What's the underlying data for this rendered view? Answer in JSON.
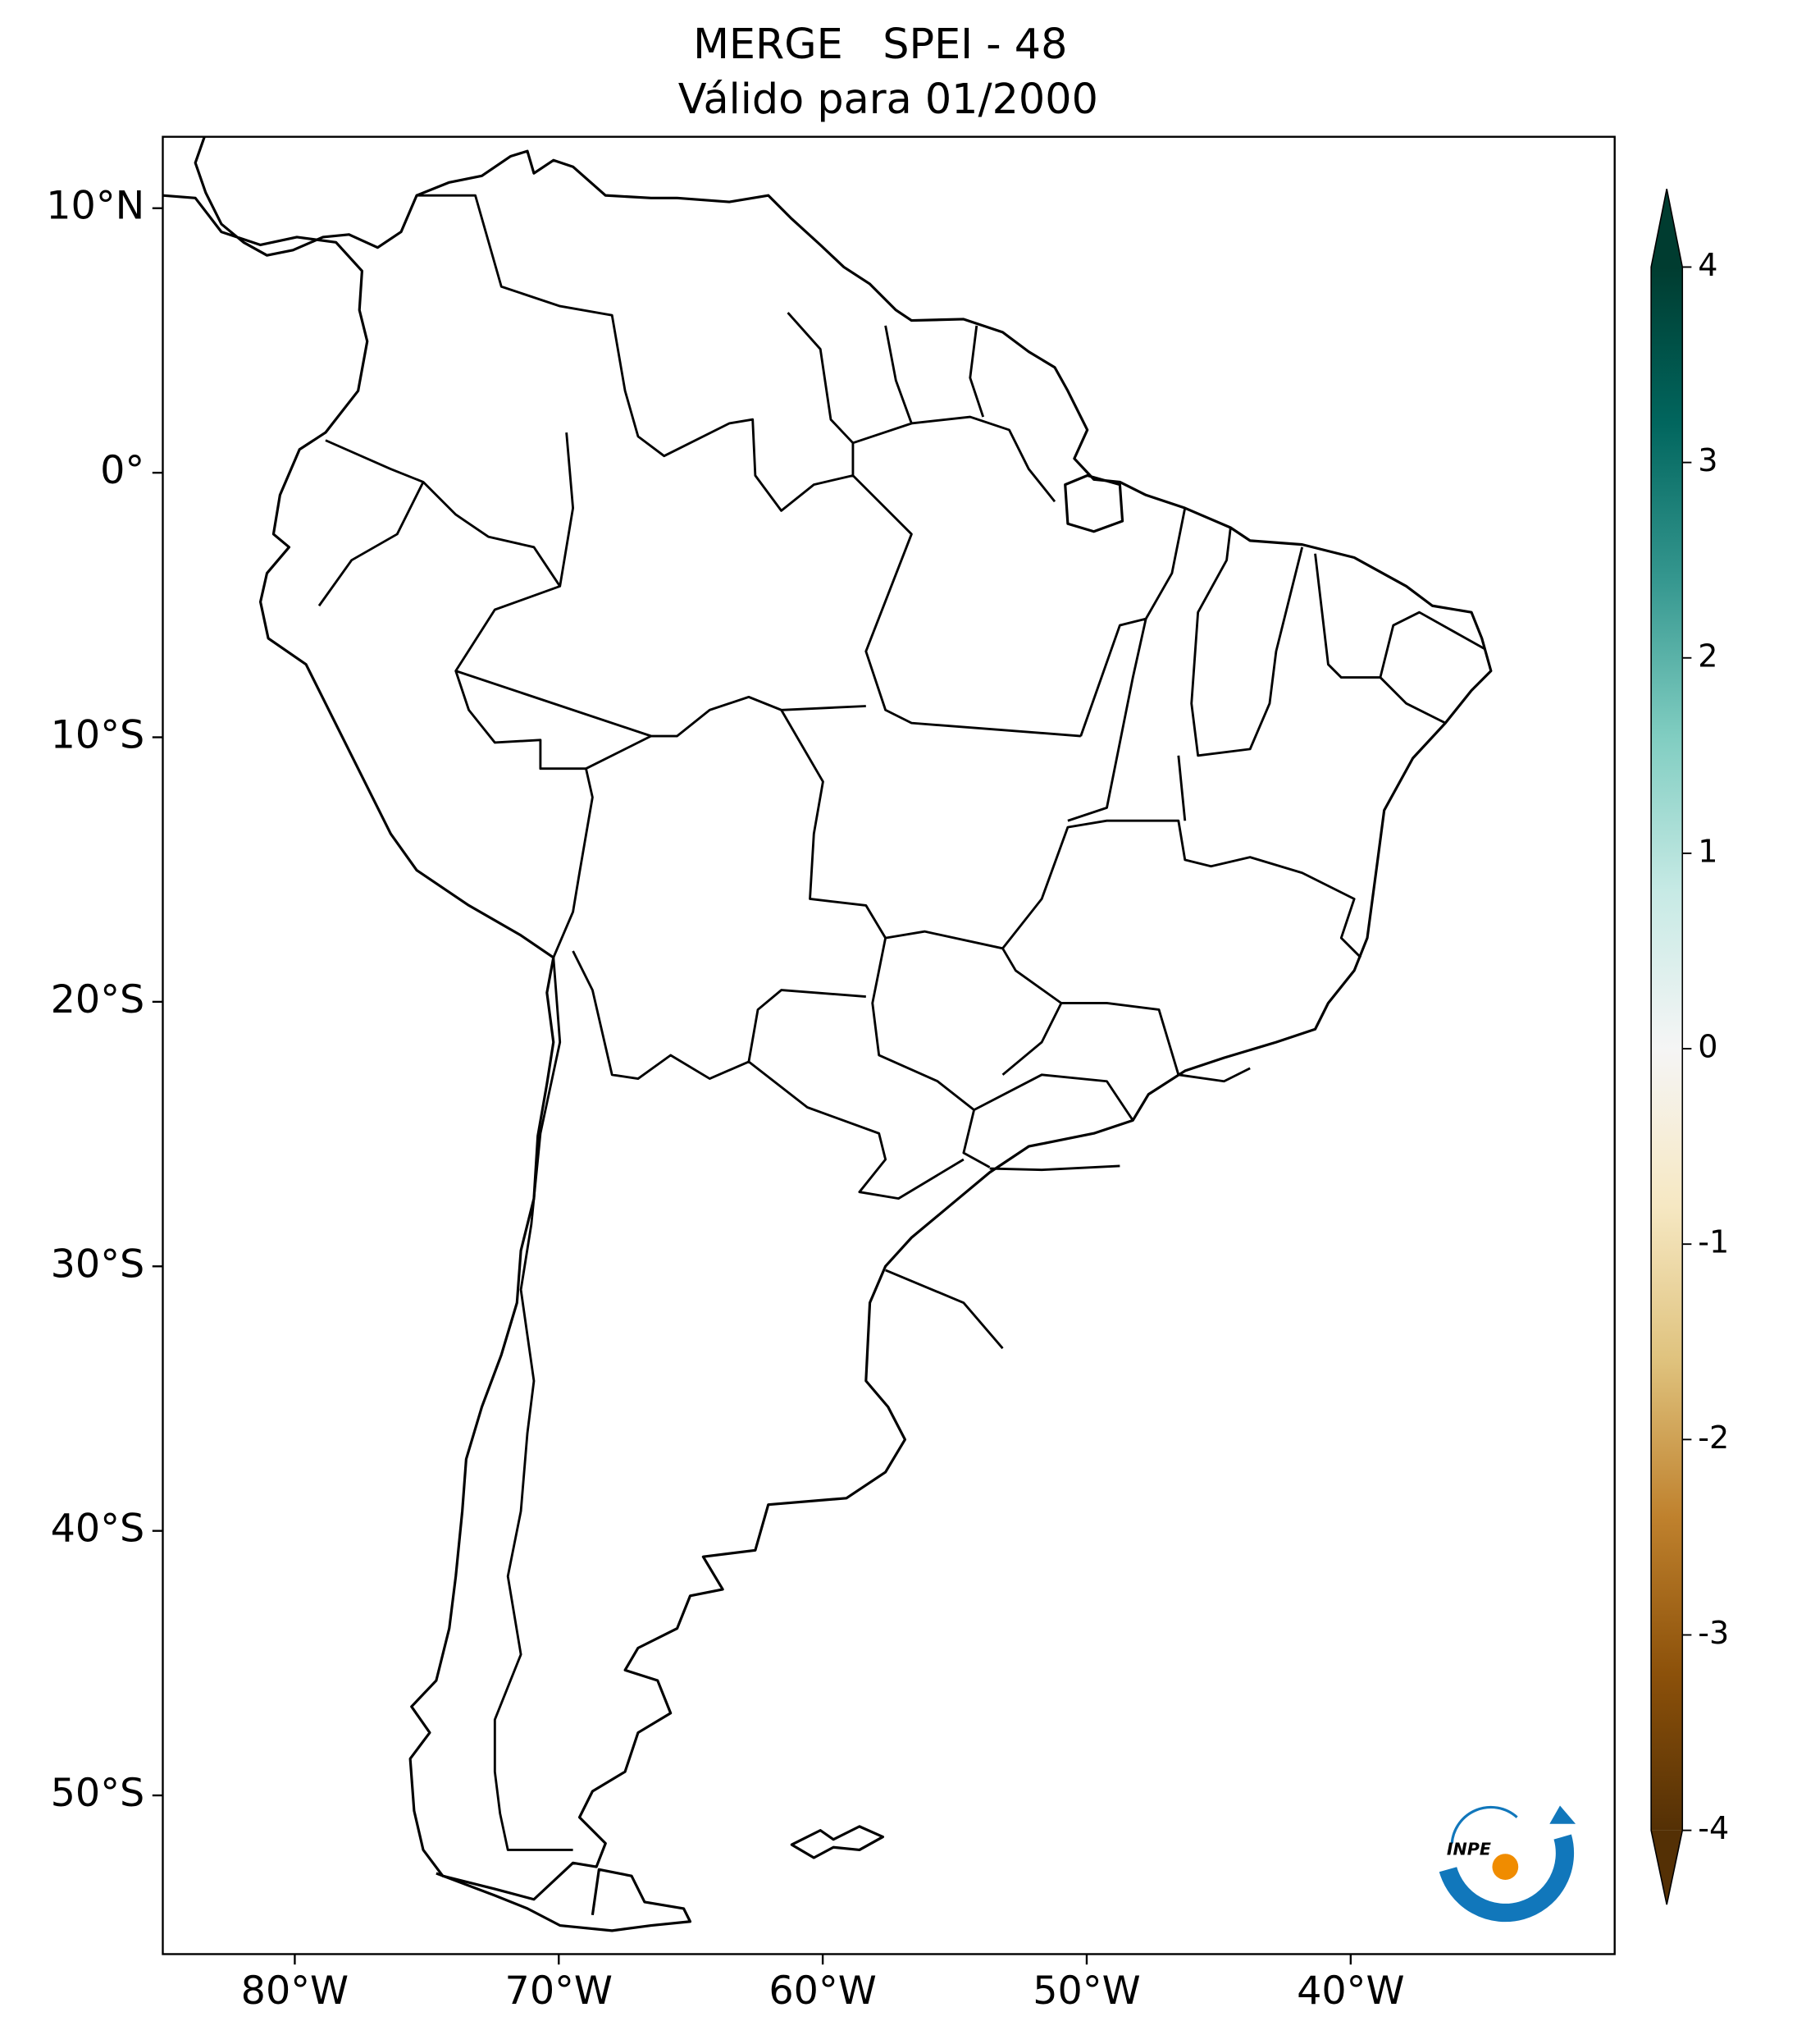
{
  "title": [
    "MERGE   SPEI - 48",
    "Válido para 01/2000"
  ],
  "map": {
    "xlim": [
      -85,
      -30
    ],
    "ylim": [
      -56,
      12.7
    ],
    "xticks": [
      {
        "value": -80,
        "label": "80°W"
      },
      {
        "value": -70,
        "label": "70°W"
      },
      {
        "value": -60,
        "label": "60°W"
      },
      {
        "value": -50,
        "label": "50°W"
      },
      {
        "value": -40,
        "label": "40°W"
      }
    ],
    "yticks": [
      {
        "value": 10,
        "label": "10°N"
      },
      {
        "value": 0,
        "label": "0°"
      },
      {
        "value": -10,
        "label": "10°S"
      },
      {
        "value": -20,
        "label": "20°S"
      },
      {
        "value": -30,
        "label": "30°S"
      },
      {
        "value": -40,
        "label": "40°S"
      },
      {
        "value": -50,
        "label": "50°S"
      }
    ]
  },
  "colorbar": {
    "lim": [
      -4,
      4
    ],
    "ticks": [
      -4,
      -3,
      -2,
      -1,
      0,
      1,
      2,
      3,
      4
    ],
    "colors": [
      "#543005",
      "#8c510a",
      "#bf812d",
      "#dfc27d",
      "#f6e8c3",
      "#f5f5f5",
      "#c7eae5",
      "#80cdc1",
      "#35978f",
      "#01665e",
      "#003c30"
    ]
  },
  "logo": "INPE"
}
